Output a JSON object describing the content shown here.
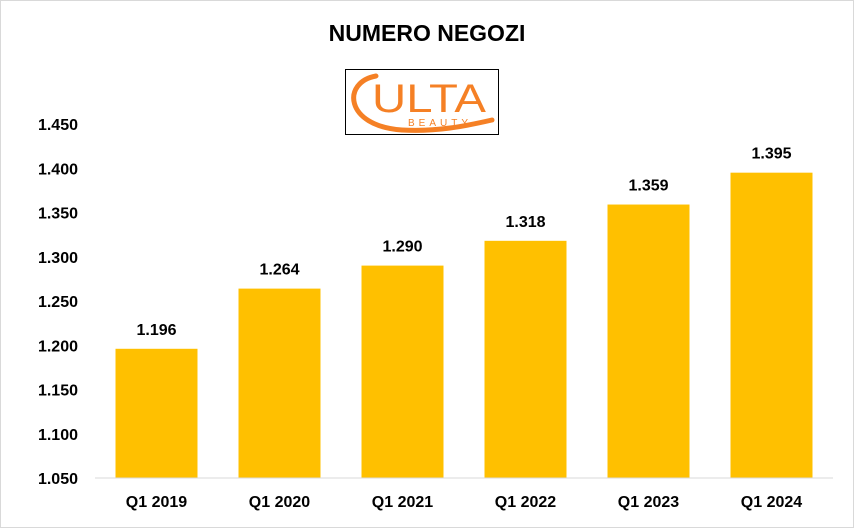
{
  "chart_data": {
    "type": "bar",
    "title": "NUMERO NEGOZI",
    "categories": [
      "Q1 2019",
      "Q1 2020",
      "Q1 2021",
      "Q1 2022",
      "Q1 2023",
      "Q1 2024"
    ],
    "values": [
      1196,
      1264,
      1290,
      1318,
      1359,
      1395
    ],
    "value_labels": [
      "1.196",
      "1.264",
      "1.290",
      "1.318",
      "1.359",
      "1.395"
    ],
    "y_ticks": [
      1050,
      1100,
      1150,
      1200,
      1250,
      1300,
      1350,
      1400,
      1450
    ],
    "y_tick_labels": [
      "1.050",
      "1.100",
      "1.150",
      "1.200",
      "1.250",
      "1.300",
      "1.350",
      "1.400",
      "1.450"
    ],
    "ylim": [
      1050,
      1450
    ],
    "grid": false,
    "legend": "none",
    "bar_color": "#FFC000"
  },
  "logo": {
    "brand_text": "ULTA",
    "sub_text": "BEAUTY",
    "color": "#F58025"
  }
}
